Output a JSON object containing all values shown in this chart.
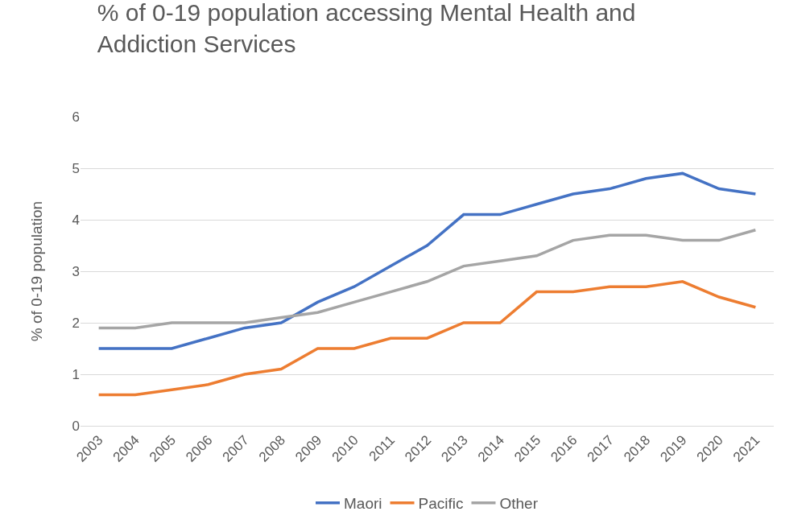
{
  "chart_data": {
    "type": "line",
    "title": "% of 0-19 population accessing Mental Health and Addiction Services",
    "ylabel": "% of 0-19 population",
    "categories": [
      "2003",
      "2004",
      "2005",
      "2006",
      "2007",
      "2008",
      "2009",
      "2010",
      "2011",
      "2012",
      "2013",
      "2014",
      "2015",
      "2016",
      "2017",
      "2018",
      "2019",
      "2020",
      "2021"
    ],
    "series": [
      {
        "name": "Maori",
        "color": "#4472c4",
        "values": [
          1.5,
          1.5,
          1.5,
          1.7,
          1.9,
          2.0,
          2.4,
          2.7,
          3.1,
          3.5,
          4.1,
          4.1,
          4.3,
          4.5,
          4.6,
          4.8,
          4.9,
          4.6,
          4.5
        ]
      },
      {
        "name": "Pacific",
        "color": "#ed7d31",
        "values": [
          0.6,
          0.6,
          0.7,
          0.8,
          1.0,
          1.1,
          1.5,
          1.5,
          1.7,
          1.7,
          2.0,
          2.0,
          2.6,
          2.6,
          2.7,
          2.7,
          2.8,
          2.5,
          2.3
        ]
      },
      {
        "name": "Other",
        "color": "#a5a5a5",
        "values": [
          1.9,
          1.9,
          2.0,
          2.0,
          2.0,
          2.1,
          2.2,
          2.4,
          2.6,
          2.8,
          3.1,
          3.2,
          3.3,
          3.6,
          3.7,
          3.7,
          3.6,
          3.6,
          3.8
        ]
      }
    ],
    "ylim": [
      0,
      6
    ],
    "yticks": [
      0,
      1,
      2,
      3,
      4,
      5,
      6
    ],
    "grid": "y",
    "legend": "bottom",
    "marker": "none",
    "line_style": "solid"
  }
}
